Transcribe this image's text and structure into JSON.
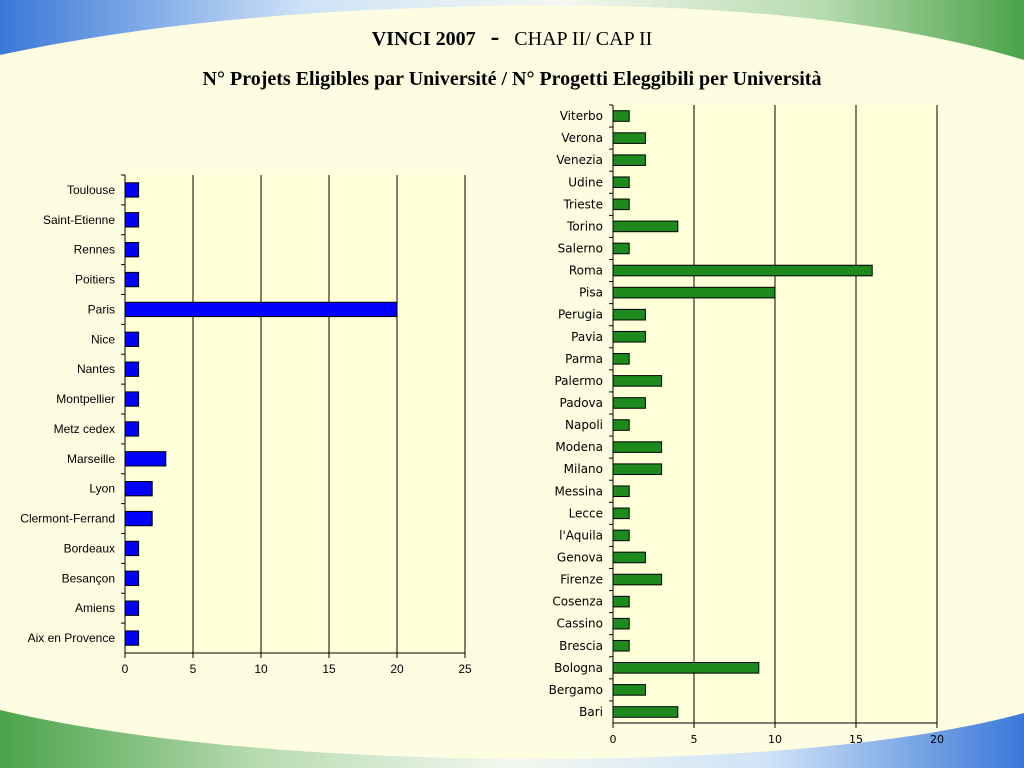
{
  "header": {
    "title_bold": "VINCI 2007",
    "title_dash": "-",
    "title_rest": "CHAP II/ CAP II",
    "subtitle": "N° Projets Eligibles par Université / N° Progetti Eleggibili per Università"
  },
  "colors": {
    "background": "#fdfde2",
    "plot_area": "#ffffd8",
    "france_bar": "#0000ff",
    "italy_bar": "#1e8a1e",
    "wave_blue": "#3a78d8",
    "wave_green": "#4ba34b"
  },
  "chart_data": [
    {
      "type": "bar",
      "orientation": "horizontal",
      "title": "",
      "xlabel": "",
      "ylabel": "",
      "xlim": [
        0,
        25
      ],
      "xticks": [
        0,
        5,
        10,
        15,
        20,
        25
      ],
      "grid": "vertical",
      "categories": [
        "Toulouse",
        "Saint-Etienne",
        "Rennes",
        "Poitiers",
        "Paris",
        "Nice",
        "Nantes",
        "Montpellier",
        "Metz cedex",
        "Marseille",
        "Lyon",
        "Clermont-Ferrand",
        "Bordeaux",
        "Besançon",
        "Amiens",
        "Aix en Provence"
      ],
      "values": [
        1,
        1,
        1,
        1,
        20,
        1,
        1,
        1,
        1,
        3,
        2,
        2,
        1,
        1,
        1,
        1
      ],
      "color": "#0000ff"
    },
    {
      "type": "bar",
      "orientation": "horizontal",
      "title": "",
      "xlabel": "",
      "ylabel": "",
      "xlim": [
        0,
        20
      ],
      "xticks": [
        0,
        5,
        10,
        15,
        20
      ],
      "grid": "vertical",
      "categories": [
        "Viterbo",
        "Verona",
        "Venezia",
        "Udine",
        "Trieste",
        "Torino",
        "Salerno",
        "Roma",
        "Pisa",
        "Perugia",
        "Pavia",
        "Parma",
        "Palermo",
        "Padova",
        "Napoli",
        "Modena",
        "Milano",
        "Messina",
        "Lecce",
        "l'Aquila",
        "Genova",
        "Firenze",
        "Cosenza",
        "Cassino",
        "Brescia",
        "Bologna",
        "Bergamo",
        "Bari"
      ],
      "values": [
        1,
        2,
        2,
        1,
        1,
        4,
        1,
        16,
        10,
        2,
        2,
        1,
        3,
        2,
        1,
        3,
        3,
        1,
        1,
        1,
        2,
        3,
        1,
        1,
        1,
        9,
        2,
        4
      ],
      "color": "#1e8a1e"
    }
  ]
}
